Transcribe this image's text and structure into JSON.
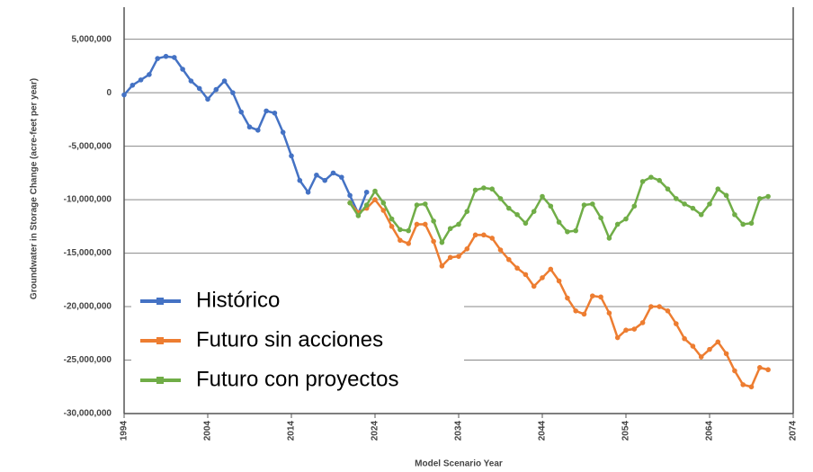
{
  "chart_data": {
    "type": "line",
    "xlabel": "Model Scenario Year",
    "ylabel": "Groundwater in Storage Change  (acre-feet per year)",
    "x": [
      1994,
      1995,
      1996,
      1997,
      1998,
      1999,
      2000,
      2001,
      2002,
      2003,
      2004,
      2005,
      2006,
      2007,
      2008,
      2009,
      2010,
      2011,
      2012,
      2013,
      2014,
      2015,
      2016,
      2017,
      2018,
      2019,
      2020,
      2021,
      2022,
      2023,
      2024,
      2025,
      2026,
      2027,
      2028,
      2029,
      2030,
      2031,
      2032,
      2033,
      2034,
      2035,
      2036,
      2037,
      2038,
      2039,
      2040,
      2041,
      2042,
      2043,
      2044,
      2045,
      2046,
      2047,
      2048,
      2049,
      2050,
      2051,
      2052,
      2053,
      2054,
      2055,
      2056,
      2057,
      2058,
      2059,
      2060,
      2061,
      2062,
      2063,
      2064,
      2065,
      2066,
      2067,
      2068,
      2069,
      2070,
      2071
    ],
    "series": [
      {
        "name": "Histórico",
        "color": "#4472c4",
        "values": [
          -200000,
          700000,
          1200000,
          1700000,
          3200000,
          3400000,
          3300000,
          2200000,
          1100000,
          400000,
          -600000,
          300000,
          1100000,
          0,
          -1800000,
          -3200000,
          -3500000,
          -1700000,
          -1900000,
          -3700000,
          -5900000,
          -8200000,
          -9300000,
          -7700000,
          -8200000,
          -7500000,
          -7900000,
          -9600000,
          -11300000,
          -9300000,
          null,
          null,
          null,
          null,
          null,
          null,
          null,
          null,
          null,
          null,
          null,
          null,
          null,
          null,
          null,
          null,
          null,
          null,
          null,
          null,
          null,
          null,
          null,
          null,
          null,
          null,
          null,
          null,
          null,
          null,
          null,
          null,
          null,
          null,
          null,
          null,
          null,
          null,
          null,
          null,
          null,
          null,
          null,
          null,
          null,
          null,
          null,
          null
        ]
      },
      {
        "name": "Futuro sin acciones",
        "color": "#ed7d31",
        "values": [
          null,
          null,
          null,
          null,
          null,
          null,
          null,
          null,
          null,
          null,
          null,
          null,
          null,
          null,
          null,
          null,
          null,
          null,
          null,
          null,
          null,
          null,
          null,
          null,
          null,
          null,
          null,
          -10300000,
          -11200000,
          -10800000,
          -10000000,
          -11000000,
          -12500000,
          -13800000,
          -14100000,
          -12300000,
          -12300000,
          -13900000,
          -16200000,
          -15400000,
          -15300000,
          -14600000,
          -13300000,
          -13300000,
          -13600000,
          -14700000,
          -15600000,
          -16400000,
          -17000000,
          -18100000,
          -17300000,
          -16500000,
          -17600000,
          -19200000,
          -20400000,
          -20700000,
          -19000000,
          -19100000,
          -20600000,
          -22900000,
          -22200000,
          -22100000,
          -21500000,
          -20000000,
          -20000000,
          -20400000,
          -21600000,
          -23000000,
          -23700000,
          -24700000,
          -24000000,
          -23300000,
          -24400000,
          -26000000,
          -27300000,
          -27500000,
          -25700000,
          -25900000
        ]
      },
      {
        "name": "Futuro con proyectos",
        "color": "#70ad47",
        "values": [
          null,
          null,
          null,
          null,
          null,
          null,
          null,
          null,
          null,
          null,
          null,
          null,
          null,
          null,
          null,
          null,
          null,
          null,
          null,
          null,
          null,
          null,
          null,
          null,
          null,
          null,
          null,
          -10300000,
          -11500000,
          -10500000,
          -9200000,
          -10300000,
          -11800000,
          -12800000,
          -12900000,
          -10500000,
          -10400000,
          -12000000,
          -14000000,
          -12700000,
          -12300000,
          -11100000,
          -9100000,
          -8900000,
          -9000000,
          -9900000,
          -10800000,
          -11400000,
          -12200000,
          -11100000,
          -9700000,
          -10600000,
          -12100000,
          -13000000,
          -12900000,
          -10500000,
          -10400000,
          -11700000,
          -13600000,
          -12300000,
          -11800000,
          -10600000,
          -8300000,
          -7900000,
          -8200000,
          -9000000,
          -9900000,
          -10400000,
          -10800000,
          -11400000,
          -10400000,
          -9000000,
          -9600000,
          -11400000,
          -12300000,
          -12200000,
          -9900000,
          -9700000
        ]
      }
    ],
    "xlim": [
      1994,
      2074
    ],
    "xticks": [
      1994,
      2004,
      2014,
      2024,
      2034,
      2044,
      2054,
      2064,
      2074
    ],
    "ylim": [
      -30000000,
      8000000
    ],
    "yticks": [
      {
        "value": 5000000,
        "label": "5,000,000"
      },
      0,
      {
        "value": -5000000,
        "label": "-5,000,000"
      },
      {
        "value": -10000000,
        "label": "-10,000,000"
      },
      {
        "value": -15000000,
        "label": "-15,000,000"
      },
      {
        "value": -20000000,
        "label": "-20,000,000"
      },
      {
        "value": -25000000,
        "label": "-25,000,000"
      },
      {
        "value": -30000000,
        "label": "-30,000,000"
      }
    ],
    "grid": true,
    "legend": "lower left"
  }
}
